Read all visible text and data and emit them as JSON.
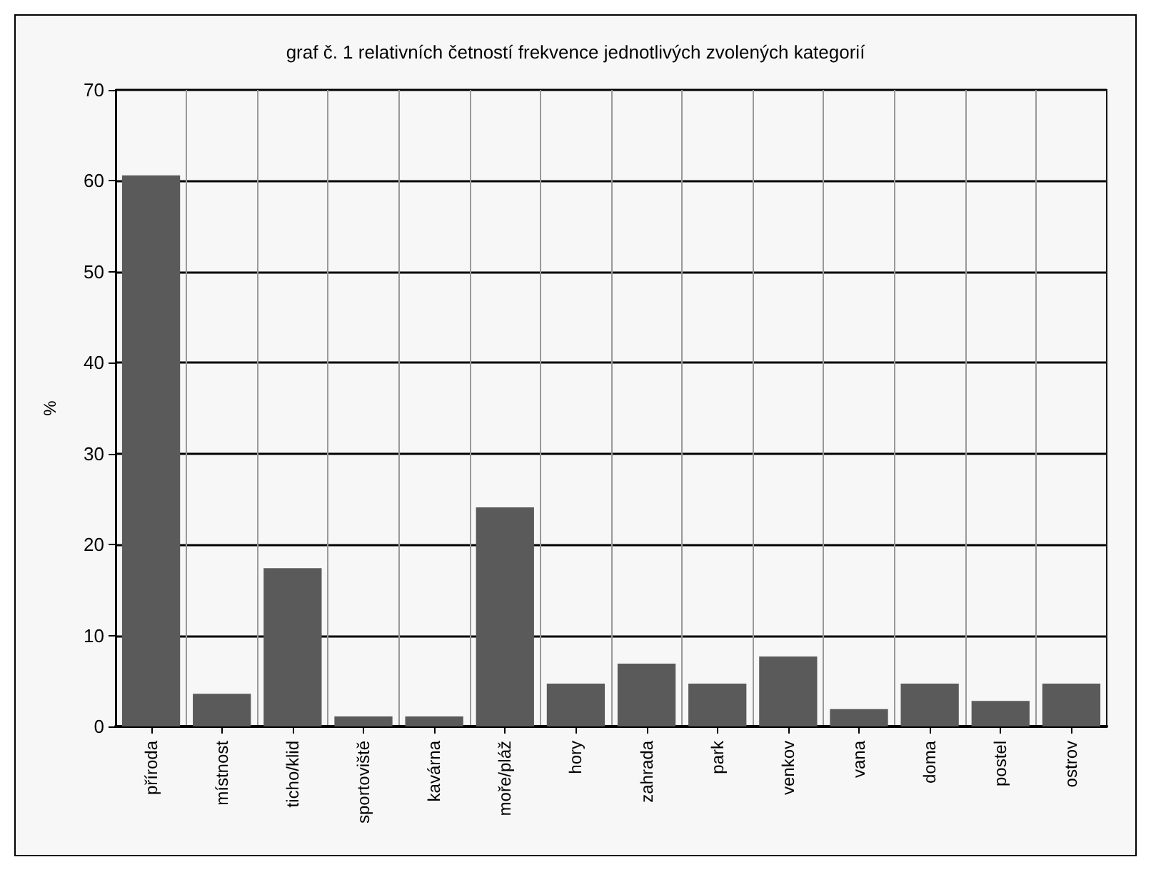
{
  "chart_data": {
    "type": "bar",
    "title": "graf č. 1 relativních četností frekvence jednotlivých zvolených kategorií",
    "ylabel": "%",
    "categories": [
      "příroda",
      "místnost",
      "ticho/klid",
      "sportoviště",
      "kavárna",
      "moře/pláž",
      "hory",
      "zahrada",
      "park",
      "venkov",
      "vana",
      "doma",
      "postel",
      "ostrov"
    ],
    "values": [
      60.6,
      3.6,
      17.4,
      1.1,
      1.1,
      24.1,
      4.7,
      6.9,
      4.7,
      7.7,
      1.9,
      4.7,
      2.8,
      4.7
    ],
    "color": "#5a5a5a",
    "ylim": [
      0,
      70
    ],
    "yticks": [
      0,
      10,
      20,
      30,
      40,
      50,
      60,
      70
    ],
    "grid": true
  }
}
